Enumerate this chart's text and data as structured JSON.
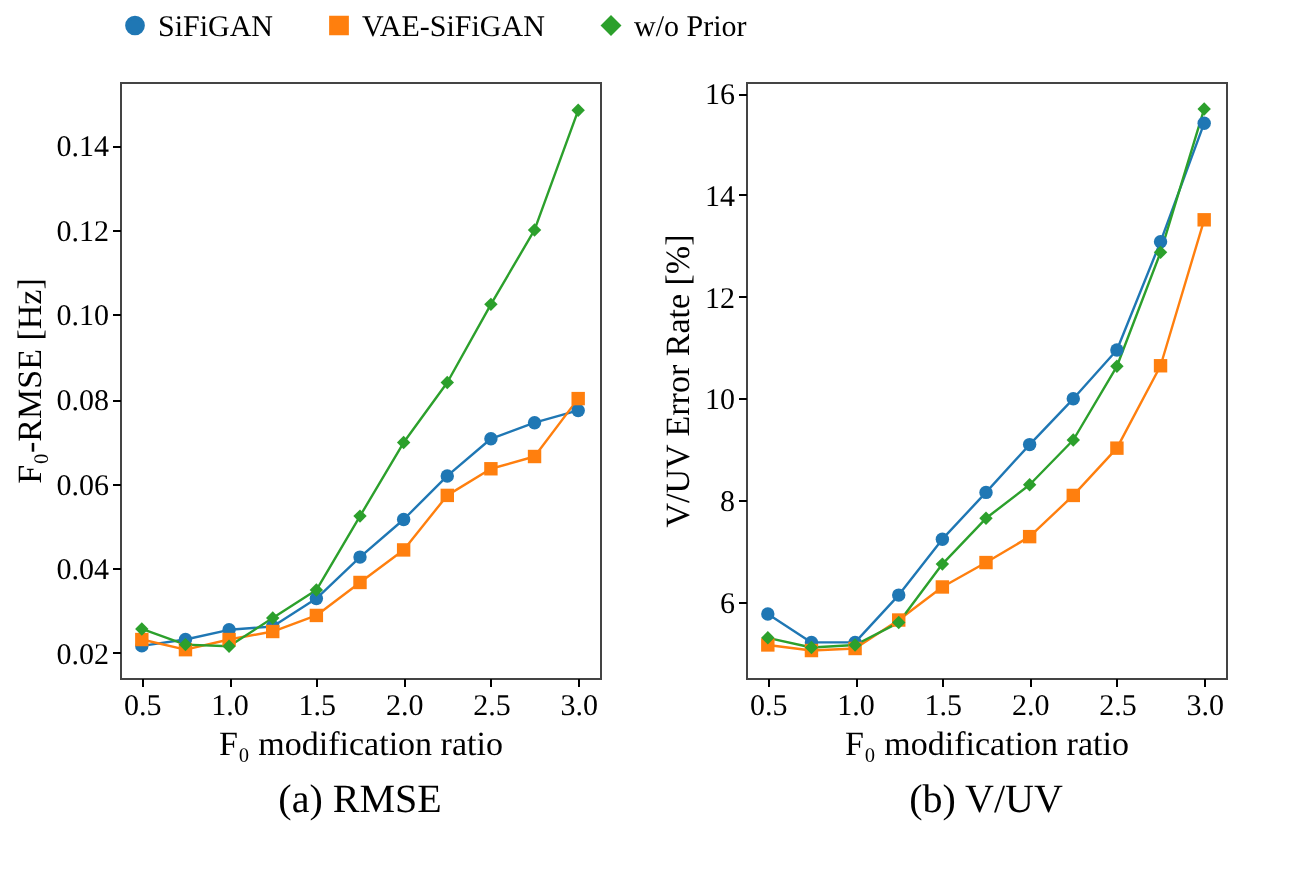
{
  "chart_data": [
    {
      "type": "line",
      "title": "(a) RMSE",
      "xlabel": "F₀ modification ratio",
      "ylabel": "F₀-RMSE [Hz]",
      "legend": "top",
      "grid": false,
      "x": [
        0.5,
        0.75,
        1.0,
        1.25,
        1.5,
        1.75,
        2.0,
        2.25,
        2.5,
        2.75,
        3.0
      ],
      "xlim": [
        0.375,
        3.125
      ],
      "xticks": [
        {
          "value": 0.5,
          "label": "0.5"
        },
        {
          "value": 1,
          "label": "1.0"
        },
        {
          "value": 1.5,
          "label": "1.5"
        },
        {
          "value": 2,
          "label": "2.0"
        },
        {
          "value": 2.5,
          "label": "2.5"
        },
        {
          "value": 3,
          "label": "3.0"
        }
      ],
      "ylim": [
        0.014,
        0.155
      ],
      "yticks": [
        {
          "value": 0.02,
          "label": "0.02"
        },
        {
          "value": 0.04,
          "label": "0.04"
        },
        {
          "value": 0.06,
          "label": "0.06"
        },
        {
          "value": 0.08,
          "label": "0.08"
        },
        {
          "value": 0.1,
          "label": "0.10"
        },
        {
          "value": 0.12,
          "label": "0.12"
        },
        {
          "value": 0.14,
          "label": "0.14"
        }
      ],
      "series": [
        {
          "name": "SiFiGAN",
          "color": "#1f77b4",
          "marker": "circle",
          "values": [
            0.0216,
            0.0231,
            0.0254,
            0.0262,
            0.0328,
            0.0426,
            0.0515,
            0.0618,
            0.0706,
            0.0744,
            0.0773
          ]
        },
        {
          "name": "VAE-SiFiGAN",
          "color": "#ff7f0e",
          "marker": "square",
          "values": [
            0.0231,
            0.0207,
            0.0231,
            0.025,
            0.0288,
            0.0366,
            0.0443,
            0.0572,
            0.0635,
            0.0664,
            0.0801
          ]
        },
        {
          "name": "w/o Prior",
          "color": "#2ca02c",
          "marker": "diamond",
          "values": [
            0.0256,
            0.0219,
            0.0215,
            0.0282,
            0.0348,
            0.0523,
            0.0697,
            0.0839,
            0.1024,
            0.12,
            0.1483
          ]
        }
      ]
    },
    {
      "type": "line",
      "title": "(b) V/UV",
      "xlabel": "F₀ modification ratio",
      "ylabel": "V/UV Error Rate [%]",
      "grid": false,
      "x": [
        0.5,
        0.75,
        1.0,
        1.25,
        1.5,
        1.75,
        2.0,
        2.25,
        2.5,
        2.75,
        3.0
      ],
      "xlim": [
        0.375,
        3.125
      ],
      "xticks": [
        {
          "value": 0.5,
          "label": "0.5"
        },
        {
          "value": 1,
          "label": "1.0"
        },
        {
          "value": 1.5,
          "label": "1.5"
        },
        {
          "value": 2,
          "label": "2.0"
        },
        {
          "value": 2.5,
          "label": "2.5"
        },
        {
          "value": 3,
          "label": "3.0"
        }
      ],
      "ylim": [
        4.5,
        16.22
      ],
      "yticks": [
        6,
        8,
        10,
        12,
        14,
        16
      ],
      "series": [
        {
          "name": "SiFiGAN",
          "color": "#1f77b4",
          "marker": "circle",
          "values": [
            5.76,
            5.2,
            5.2,
            6.13,
            7.23,
            8.15,
            9.09,
            9.99,
            10.95,
            13.08,
            15.41
          ]
        },
        {
          "name": "VAE-SiFiGAN",
          "color": "#ff7f0e",
          "marker": "square",
          "values": [
            5.15,
            5.04,
            5.08,
            5.64,
            6.29,
            6.77,
            7.28,
            8.09,
            9.02,
            10.64,
            13.51
          ]
        },
        {
          "name": "w/o Prior",
          "color": "#2ca02c",
          "marker": "diamond",
          "values": [
            5.29,
            5.1,
            5.15,
            5.59,
            6.74,
            7.64,
            8.3,
            9.18,
            10.63,
            12.87,
            15.69
          ]
        }
      ]
    }
  ]
}
